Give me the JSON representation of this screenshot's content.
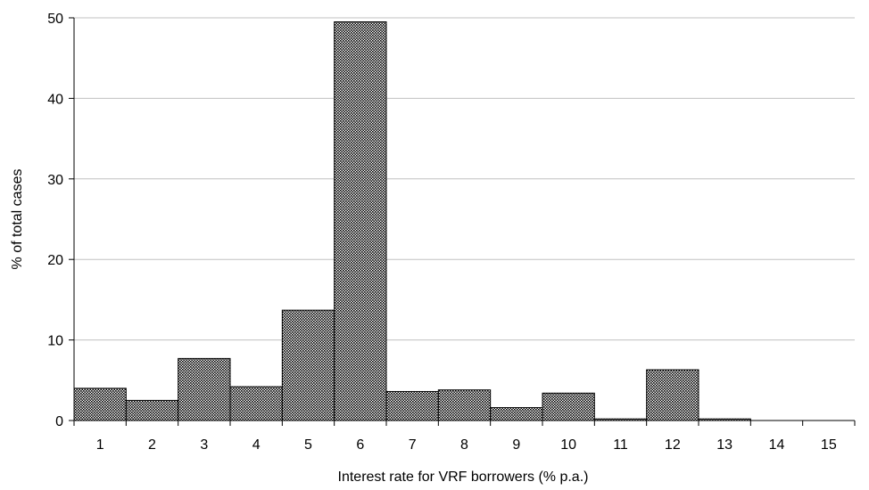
{
  "chart_data": {
    "type": "bar",
    "title": "",
    "xlabel": "Interest rate for VRF borrowers (% p.a.)",
    "ylabel": "% of total cases",
    "categories": [
      "1",
      "2",
      "3",
      "4",
      "5",
      "6",
      "7",
      "8",
      "9",
      "10",
      "11",
      "12",
      "13",
      "14",
      "15"
    ],
    "values": [
      4.0,
      2.5,
      7.7,
      4.2,
      13.7,
      49.5,
      3.6,
      3.8,
      1.6,
      3.4,
      0.2,
      6.3,
      0.2,
      0,
      0
    ],
    "ylim": [
      0,
      50
    ],
    "yticks": [
      "0",
      "10",
      "20",
      "30",
      "40",
      "50"
    ],
    "grid": true,
    "legend": "none",
    "bar_fill": "crosshatch",
    "colors": {
      "bar": "#000000",
      "background": "#ffffff",
      "grid": "#c0c0c0"
    }
  }
}
